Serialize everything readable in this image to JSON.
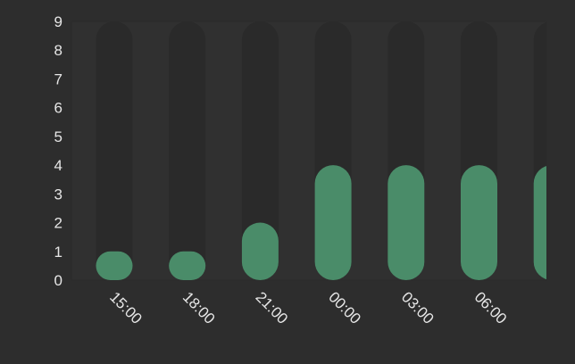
{
  "chart_data": {
    "type": "bar",
    "title": "",
    "xlabel": "",
    "ylabel": "",
    "categories": [
      "15:00",
      "18:00",
      "21:00",
      "00:00",
      "03:00",
      "06:00",
      ""
    ],
    "values": [
      1,
      1,
      2,
      4,
      4,
      4,
      4
    ],
    "ylim": [
      0,
      9
    ],
    "yticks": [
      "0",
      "1",
      "2",
      "3",
      "4",
      "5",
      "6",
      "7",
      "8",
      "9"
    ],
    "grid": false,
    "legend": "none",
    "colors": {
      "bar": "#4a8c69",
      "track": "#2a2a2a",
      "background": "#2d2d2d",
      "plot_background": "#303030",
      "text": "#e6e6e6"
    }
  }
}
